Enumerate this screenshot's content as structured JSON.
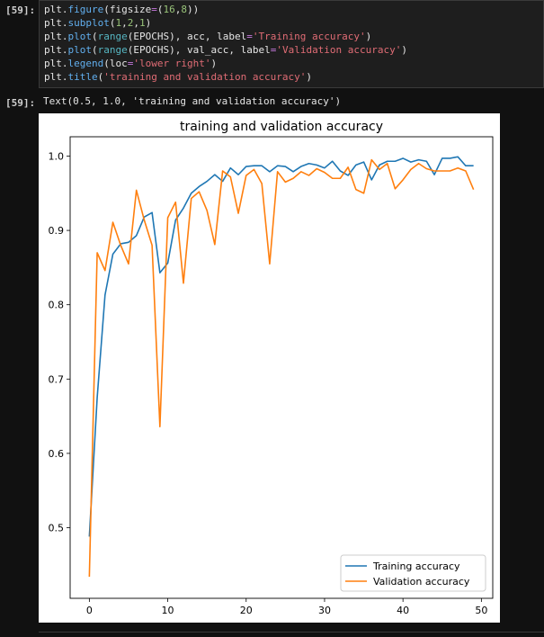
{
  "cell": {
    "input_prompt": "[59]:",
    "output_prompt": "[59]:",
    "code_lines": [
      [
        [
          "plt",
          "default"
        ],
        [
          ".",
          "default"
        ],
        [
          "figure",
          "func"
        ],
        [
          "(figsize",
          "default"
        ],
        [
          "=",
          "op"
        ],
        [
          "(",
          "default"
        ],
        [
          "16",
          "num"
        ],
        [
          ",",
          "default"
        ],
        [
          "8",
          "num"
        ],
        [
          "))",
          "default"
        ]
      ],
      [
        [
          "plt",
          "default"
        ],
        [
          ".",
          "default"
        ],
        [
          "subplot",
          "func"
        ],
        [
          "(",
          "default"
        ],
        [
          "1",
          "num"
        ],
        [
          ",",
          "default"
        ],
        [
          "2",
          "num"
        ],
        [
          ",",
          "default"
        ],
        [
          "1",
          "num"
        ],
        [
          ")",
          "default"
        ]
      ],
      [
        [
          "plt",
          "default"
        ],
        [
          ".",
          "default"
        ],
        [
          "plot",
          "func"
        ],
        [
          "(",
          "default"
        ],
        [
          "range",
          "kw"
        ],
        [
          "(EPOCHS), acc, label",
          "default"
        ],
        [
          "=",
          "op"
        ],
        [
          "'Training accuracy'",
          "str"
        ],
        [
          ")",
          "default"
        ]
      ],
      [
        [
          "plt",
          "default"
        ],
        [
          ".",
          "default"
        ],
        [
          "plot",
          "func"
        ],
        [
          "(",
          "default"
        ],
        [
          "range",
          "kw"
        ],
        [
          "(EPOCHS), val_acc, label",
          "default"
        ],
        [
          "=",
          "op"
        ],
        [
          "'Validation accuracy'",
          "str"
        ],
        [
          ")",
          "default"
        ]
      ],
      [
        [
          "plt",
          "default"
        ],
        [
          ".",
          "default"
        ],
        [
          "legend",
          "func"
        ],
        [
          "(loc",
          "default"
        ],
        [
          "=",
          "op"
        ],
        [
          "'lower right'",
          "str"
        ],
        [
          ")",
          "default"
        ]
      ],
      [
        [
          "plt",
          "default"
        ],
        [
          ".",
          "default"
        ],
        [
          "title",
          "func"
        ],
        [
          "(",
          "default"
        ],
        [
          "'training and validation accuracy'",
          "str"
        ],
        [
          ")",
          "default"
        ]
      ]
    ],
    "output_text": "Text(0.5, 1.0, 'training and validation accuracy')"
  },
  "chart_data": {
    "type": "line",
    "title": "training and validation accuracy",
    "xlabel": "",
    "ylabel": "",
    "xlim": [
      -2.45,
      51.45
    ],
    "ylim": [
      0.405,
      1.026
    ],
    "xticks": [
      0,
      10,
      20,
      30,
      40,
      50
    ],
    "yticks": [
      0.5,
      0.6,
      0.7,
      0.8,
      0.9,
      1.0
    ],
    "ytick_labels": [
      "0.5",
      "0.6",
      "0.7",
      "0.8",
      "0.9",
      "1.0"
    ],
    "legend_loc": "lower right",
    "grid": false,
    "series": [
      {
        "name": "Training accuracy",
        "color": "#1f77b4",
        "values": [
          0.488,
          0.675,
          0.813,
          0.868,
          0.882,
          0.884,
          0.893,
          0.918,
          0.924,
          0.843,
          0.856,
          0.914,
          0.93,
          0.95,
          0.959,
          0.966,
          0.975,
          0.966,
          0.984,
          0.975,
          0.986,
          0.987,
          0.987,
          0.979,
          0.987,
          0.986,
          0.979,
          0.986,
          0.99,
          0.988,
          0.984,
          0.993,
          0.98,
          0.974,
          0.988,
          0.992,
          0.968,
          0.988,
          0.993,
          0.993,
          0.997,
          0.992,
          0.995,
          0.993,
          0.975,
          0.997,
          0.997,
          0.999,
          0.987,
          0.987
        ]
      },
      {
        "name": "Validation accuracy",
        "color": "#ff7f0e",
        "values": [
          0.434,
          0.87,
          0.846,
          0.911,
          0.88,
          0.855,
          0.954,
          0.914,
          0.88,
          0.636,
          0.917,
          0.938,
          0.829,
          0.943,
          0.952,
          0.927,
          0.881,
          0.98,
          0.972,
          0.923,
          0.974,
          0.982,
          0.963,
          0.855,
          0.979,
          0.965,
          0.97,
          0.979,
          0.974,
          0.983,
          0.978,
          0.97,
          0.97,
          0.985,
          0.955,
          0.95,
          0.995,
          0.982,
          0.99,
          0.956,
          0.968,
          0.982,
          0.99,
          0.983,
          0.98,
          0.98,
          0.98,
          0.984,
          0.98,
          0.955
        ]
      }
    ]
  }
}
